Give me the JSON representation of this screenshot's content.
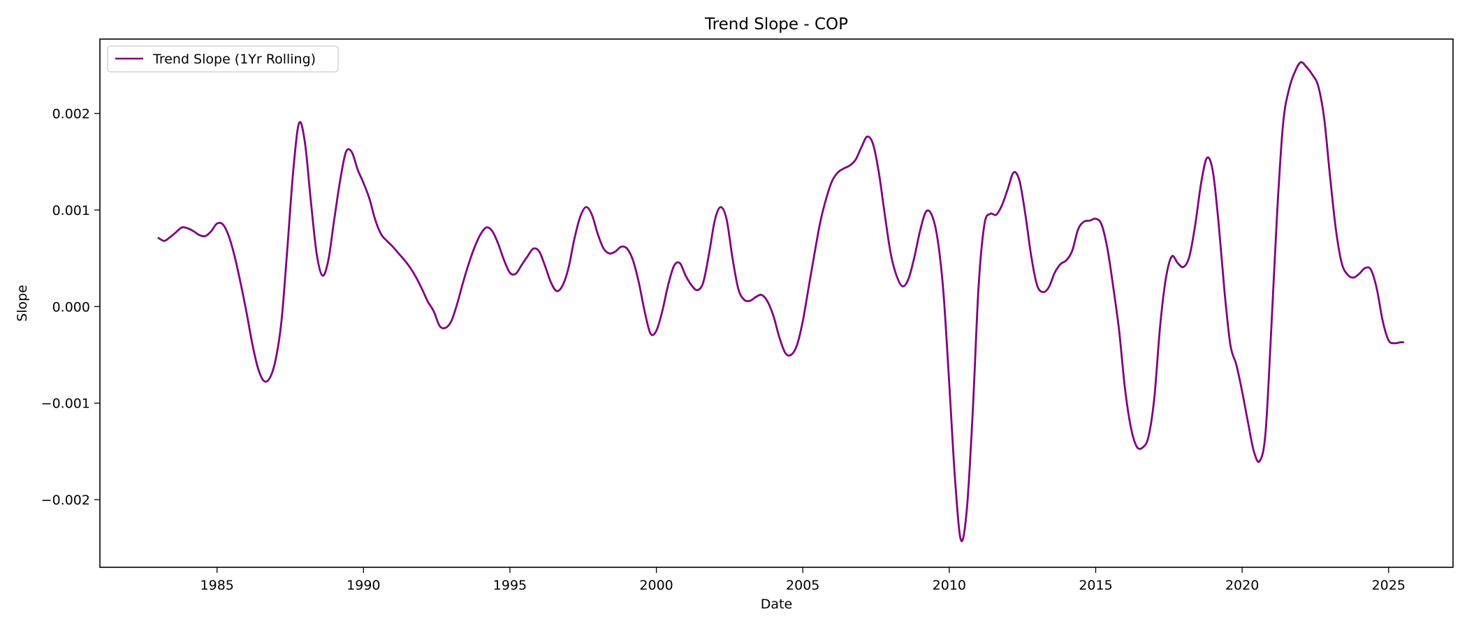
{
  "chart_data": {
    "type": "line",
    "title": "Trend Slope - COP",
    "xlabel": "Date",
    "ylabel": "Slope",
    "xlim": [
      1981.0,
      2027.2
    ],
    "ylim": [
      -0.0027,
      0.00277
    ],
    "x_ticks": [
      1985,
      1990,
      1995,
      2000,
      2005,
      2010,
      2015,
      2020,
      2025
    ],
    "x_tick_labels": [
      "1985",
      "1990",
      "1995",
      "2000",
      "2005",
      "2010",
      "2015",
      "2020",
      "2025"
    ],
    "y_ticks": [
      -0.002,
      -0.001,
      0.0,
      0.001,
      0.002
    ],
    "y_tick_labels": [
      "−0.002",
      "−0.001",
      "0.000",
      "0.001",
      "0.002"
    ],
    "grid": false,
    "legend": {
      "position": "top-left",
      "entries": [
        "Trend Slope (1Yr Rolling)"
      ]
    },
    "series": [
      {
        "name": "Trend Slope (1Yr Rolling)",
        "color": "#800080",
        "points": [
          [
            1983.0,
            0.00071
          ],
          [
            1983.2,
            0.00068
          ],
          [
            1983.4,
            0.00072
          ],
          [
            1983.6,
            0.00077
          ],
          [
            1983.8,
            0.00082
          ],
          [
            1984.0,
            0.00081
          ],
          [
            1984.2,
            0.00078
          ],
          [
            1984.4,
            0.00074
          ],
          [
            1984.6,
            0.00073
          ],
          [
            1984.8,
            0.00078
          ],
          [
            1985.0,
            0.00086
          ],
          [
            1985.2,
            0.00085
          ],
          [
            1985.4,
            0.00073
          ],
          [
            1985.6,
            0.00052
          ],
          [
            1985.8,
            0.00025
          ],
          [
            1986.0,
            -5e-05
          ],
          [
            1986.2,
            -0.00038
          ],
          [
            1986.4,
            -0.00064
          ],
          [
            1986.6,
            -0.00077
          ],
          [
            1986.8,
            -0.00074
          ],
          [
            1987.0,
            -0.00055
          ],
          [
            1987.2,
            -0.00015
          ],
          [
            1987.4,
            0.0006
          ],
          [
            1987.6,
            0.0014
          ],
          [
            1987.8,
            0.0019
          ],
          [
            1988.0,
            0.0017
          ],
          [
            1988.2,
            0.0011
          ],
          [
            1988.4,
            0.00055
          ],
          [
            1988.6,
            0.00032
          ],
          [
            1988.8,
            0.00048
          ],
          [
            1989.0,
            0.0009
          ],
          [
            1989.2,
            0.0013
          ],
          [
            1989.4,
            0.0016
          ],
          [
            1989.6,
            0.0016
          ],
          [
            1989.8,
            0.00142
          ],
          [
            1990.0,
            0.00128
          ],
          [
            1990.2,
            0.00112
          ],
          [
            1990.4,
            0.0009
          ],
          [
            1990.6,
            0.00075
          ],
          [
            1990.8,
            0.00068
          ],
          [
            1991.0,
            0.00062
          ],
          [
            1991.2,
            0.00055
          ],
          [
            1991.4,
            0.00048
          ],
          [
            1991.6,
            0.0004
          ],
          [
            1991.8,
            0.0003
          ],
          [
            1992.0,
            0.00018
          ],
          [
            1992.2,
            5e-05
          ],
          [
            1992.4,
            -5e-05
          ],
          [
            1992.6,
            -0.0002
          ],
          [
            1992.8,
            -0.00022
          ],
          [
            1993.0,
            -0.00015
          ],
          [
            1993.2,
            3e-05
          ],
          [
            1993.4,
            0.00025
          ],
          [
            1993.6,
            0.00045
          ],
          [
            1993.8,
            0.00062
          ],
          [
            1994.0,
            0.00075
          ],
          [
            1994.2,
            0.00082
          ],
          [
            1994.4,
            0.00078
          ],
          [
            1994.6,
            0.00065
          ],
          [
            1994.8,
            0.00048
          ],
          [
            1995.0,
            0.00035
          ],
          [
            1995.2,
            0.00034
          ],
          [
            1995.4,
            0.00043
          ],
          [
            1995.6,
            0.00052
          ],
          [
            1995.8,
            0.0006
          ],
          [
            1996.0,
            0.00057
          ],
          [
            1996.2,
            0.00042
          ],
          [
            1996.4,
            0.00025
          ],
          [
            1996.6,
            0.00016
          ],
          [
            1996.8,
            0.00022
          ],
          [
            1997.0,
            0.0004
          ],
          [
            1997.2,
            0.0007
          ],
          [
            1997.4,
            0.00093
          ],
          [
            1997.6,
            0.00103
          ],
          [
            1997.8,
            0.00095
          ],
          [
            1998.0,
            0.00075
          ],
          [
            1998.2,
            0.0006
          ],
          [
            1998.4,
            0.00055
          ],
          [
            1998.6,
            0.00057
          ],
          [
            1998.8,
            0.00062
          ],
          [
            1999.0,
            0.0006
          ],
          [
            1999.2,
            0.00048
          ],
          [
            1999.4,
            0.00025
          ],
          [
            1999.6,
            -5e-05
          ],
          [
            1999.8,
            -0.00028
          ],
          [
            2000.0,
            -0.00025
          ],
          [
            2000.2,
            -5e-05
          ],
          [
            2000.4,
            0.00022
          ],
          [
            2000.6,
            0.00042
          ],
          [
            2000.8,
            0.00045
          ],
          [
            2001.0,
            0.00032
          ],
          [
            2001.2,
            0.00022
          ],
          [
            2001.4,
            0.00017
          ],
          [
            2001.6,
            0.00025
          ],
          [
            2001.8,
            0.00055
          ],
          [
            2002.0,
            0.0009
          ],
          [
            2002.2,
            0.00103
          ],
          [
            2002.4,
            0.0009
          ],
          [
            2002.6,
            0.0005
          ],
          [
            2002.8,
            0.00018
          ],
          [
            2003.0,
            7e-05
          ],
          [
            2003.2,
            6e-05
          ],
          [
            2003.4,
            0.0001
          ],
          [
            2003.6,
            0.00012
          ],
          [
            2003.8,
            5e-05
          ],
          [
            2004.0,
            -0.0001
          ],
          [
            2004.2,
            -0.00032
          ],
          [
            2004.4,
            -0.00048
          ],
          [
            2004.6,
            -0.0005
          ],
          [
            2004.8,
            -0.0004
          ],
          [
            2005.0,
            -0.00015
          ],
          [
            2005.2,
            0.0002
          ],
          [
            2005.4,
            0.00055
          ],
          [
            2005.6,
            0.00088
          ],
          [
            2005.8,
            0.00112
          ],
          [
            2006.0,
            0.0013
          ],
          [
            2006.2,
            0.00139
          ],
          [
            2006.4,
            0.00143
          ],
          [
            2006.6,
            0.00146
          ],
          [
            2006.8,
            0.00152
          ],
          [
            2007.0,
            0.00165
          ],
          [
            2007.2,
            0.00176
          ],
          [
            2007.4,
            0.00168
          ],
          [
            2007.6,
            0.00138
          ],
          [
            2007.8,
            0.00095
          ],
          [
            2008.0,
            0.00055
          ],
          [
            2008.2,
            0.00032
          ],
          [
            2008.4,
            0.00021
          ],
          [
            2008.6,
            0.00028
          ],
          [
            2008.8,
            0.0005
          ],
          [
            2009.0,
            0.00078
          ],
          [
            2009.2,
            0.00098
          ],
          [
            2009.4,
            0.00095
          ],
          [
            2009.6,
            0.0007
          ],
          [
            2009.8,
            0.00015
          ],
          [
            2010.0,
            -0.0008
          ],
          [
            2010.2,
            -0.0018
          ],
          [
            2010.4,
            -0.00242
          ],
          [
            2010.6,
            -0.0021
          ],
          [
            2010.8,
            -0.0011
          ],
          [
            2011.0,
            0.0002
          ],
          [
            2011.2,
            0.00085
          ],
          [
            2011.4,
            0.00096
          ],
          [
            2011.6,
            0.00095
          ],
          [
            2011.8,
            0.00105
          ],
          [
            2012.0,
            0.00122
          ],
          [
            2012.2,
            0.00139
          ],
          [
            2012.4,
            0.0013
          ],
          [
            2012.6,
            0.00095
          ],
          [
            2012.8,
            0.00052
          ],
          [
            2013.0,
            0.00022
          ],
          [
            2013.2,
            0.00015
          ],
          [
            2013.4,
            0.0002
          ],
          [
            2013.6,
            0.00035
          ],
          [
            2013.8,
            0.00044
          ],
          [
            2014.0,
            0.00048
          ],
          [
            2014.2,
            0.00058
          ],
          [
            2014.4,
            0.0008
          ],
          [
            2014.6,
            0.00088
          ],
          [
            2014.8,
            0.00089
          ],
          [
            2015.0,
            0.00091
          ],
          [
            2015.2,
            0.00085
          ],
          [
            2015.4,
            0.0006
          ],
          [
            2015.6,
            0.0002
          ],
          [
            2015.8,
            -0.00025
          ],
          [
            2016.0,
            -0.00085
          ],
          [
            2016.2,
            -0.00125
          ],
          [
            2016.4,
            -0.00145
          ],
          [
            2016.6,
            -0.00146
          ],
          [
            2016.8,
            -0.00135
          ],
          [
            2017.0,
            -0.00095
          ],
          [
            2017.2,
            -0.0002
          ],
          [
            2017.4,
            0.0003
          ],
          [
            2017.6,
            0.00052
          ],
          [
            2017.8,
            0.00045
          ],
          [
            2018.0,
            0.00041
          ],
          [
            2018.2,
            0.00052
          ],
          [
            2018.4,
            0.00085
          ],
          [
            2018.6,
            0.00128
          ],
          [
            2018.8,
            0.00154
          ],
          [
            2019.0,
            0.0014
          ],
          [
            2019.2,
            0.00085
          ],
          [
            2019.4,
            0.00015
          ],
          [
            2019.6,
            -0.0004
          ],
          [
            2019.8,
            -0.0006
          ],
          [
            2020.0,
            -0.00088
          ],
          [
            2020.2,
            -0.0012
          ],
          [
            2020.4,
            -0.0015
          ],
          [
            2020.6,
            -0.0016
          ],
          [
            2020.8,
            -0.0013
          ],
          [
            2021.0,
            -0.0002
          ],
          [
            2021.2,
            0.001
          ],
          [
            2021.4,
            0.0019
          ],
          [
            2021.6,
            0.00225
          ],
          [
            2021.8,
            0.00243
          ],
          [
            2022.0,
            0.00253
          ],
          [
            2022.2,
            0.00248
          ],
          [
            2022.4,
            0.0024
          ],
          [
            2022.6,
            0.00228
          ],
          [
            2022.8,
            0.00195
          ],
          [
            2023.0,
            0.00135
          ],
          [
            2023.2,
            0.0008
          ],
          [
            2023.4,
            0.00045
          ],
          [
            2023.6,
            0.00033
          ],
          [
            2023.8,
            0.0003
          ],
          [
            2024.0,
            0.00034
          ],
          [
            2024.2,
            0.0004
          ],
          [
            2024.4,
            0.00038
          ],
          [
            2024.6,
            0.00018
          ],
          [
            2024.8,
            -0.00015
          ],
          [
            2025.0,
            -0.00035
          ],
          [
            2025.2,
            -0.00038
          ],
          [
            2025.4,
            -0.00037
          ],
          [
            2025.5,
            -0.00037
          ]
        ]
      }
    ]
  }
}
